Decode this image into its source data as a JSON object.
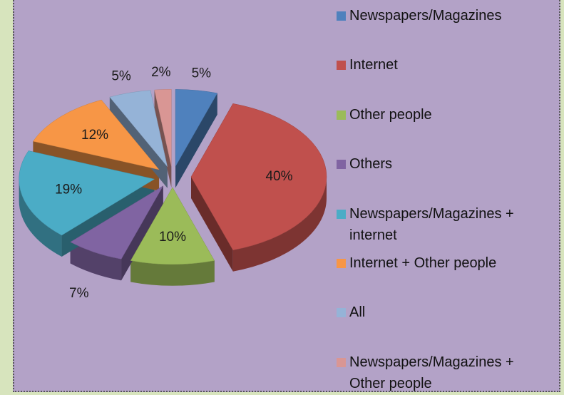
{
  "chart_data": {
    "type": "pie",
    "categories": [
      "Newspapers/Magazines",
      "Internet",
      "Other people",
      "Others",
      "Newspapers/Magazines + internet",
      "Internet + Other people",
      "All",
      "Newspapers/Magazines + Other people"
    ],
    "values": [
      5,
      40,
      10,
      7,
      19,
      12,
      5,
      2
    ],
    "value_labels": [
      "5%",
      "40%",
      "10%",
      "7%",
      "19%",
      "12%",
      "5%",
      "2%"
    ],
    "colors": [
      "#4f81bd",
      "#c0504d",
      "#9bbb59",
      "#8064a2",
      "#4bacc6",
      "#f79646",
      "#95b3d7",
      "#d99694"
    ],
    "legend": "right"
  }
}
